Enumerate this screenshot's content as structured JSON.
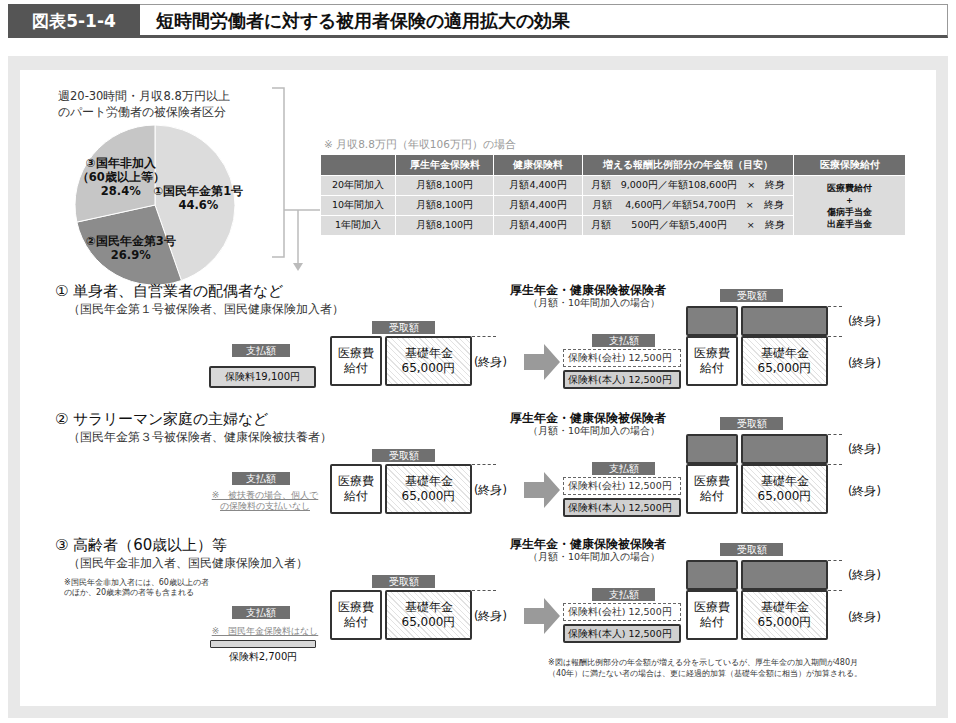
{
  "header": {
    "label": "図表5-1-4",
    "title": "短時間労働者に対する被用者保険の適用拡大の効果"
  },
  "chart_data": {
    "type": "pie",
    "title": "週20-30時間・月収8.8万円以上\nのパート労働者の被保険者区分",
    "categories": [
      "①国民年金第1号",
      "②国民年金第3号",
      "③国年非加入\n（60歳以上等）"
    ],
    "values": [
      44.6,
      26.9,
      28.4
    ],
    "value_labels": [
      "44.6%",
      "26.9%",
      "28.4%"
    ],
    "colors": [
      "#dcdcdc",
      "#8c8c8c",
      "#c6c6c6"
    ],
    "data_labels": true
  },
  "table": {
    "note": "※ 月収8.8万円（年収106万円）の場合",
    "columns": [
      "厚生年金保険料",
      "健康保険料",
      "増える報酬比例部分の年金額（目安）",
      "医療保険給付"
    ],
    "rows": [
      [
        "20年間加入",
        "月額8,100円",
        "月額4,400円",
        "月額　9,000円／年額108,600円　×　終身"
      ],
      [
        "10年間加入",
        "月額8,100円",
        "月額4,400円",
        "月額　 4,600円／年額54,700円　×　終身"
      ],
      [
        "1年間加入",
        "月額8,100円",
        "月額4,400円",
        "月額　　500円／年額5,400円　　×　終身"
      ]
    ],
    "medical_benefits": [
      "医療費給付",
      "＋",
      "傷病手当金",
      "出産手当金"
    ]
  },
  "before": {
    "pay_label": "支払額",
    "receive_label": "受取額",
    "medical": [
      "医療費",
      "給付"
    ],
    "pension": [
      "基礎年金",
      "65,000円"
    ],
    "lifetime": "(終身)"
  },
  "after": {
    "title": "厚生年金・健康保険被保険者",
    "subtitle": "（月額・10年間加入の場合）",
    "pay_label": "支払額",
    "company": "保険料(会社) 12,500円",
    "self": "保険料(本人) 12,500円",
    "receive_label": "受取額",
    "medical": [
      "医療費",
      "給付"
    ],
    "pension": [
      "基礎年金",
      "65,000円"
    ],
    "lifetime": "(終身)"
  },
  "sections": [
    {
      "title": "① 単身者、自営業者の配偶者など",
      "subtitle": "（国民年金第１号被保険者、国民健康保険加入者）",
      "pay_box": "保険料19,100円"
    },
    {
      "title": "② サラリーマン家庭の主婦など",
      "subtitle": "（国民年金第３号被保険者、健康保険被扶養者）",
      "pay_note": [
        "※　被扶養の場合、個人で",
        "の保険料の支払いなし"
      ]
    },
    {
      "title": "③ 高齢者（60歳以上）等",
      "subtitle": "（国民年金非加入者、国民健康保険加入者）",
      "note": [
        "※国民年金非加入者には、60歳以上の者",
        "のほか、20歳未満の者等も含まれる"
      ],
      "pay_note": [
        "※　国民年金保険料はなし"
      ],
      "pay_box": "保険料2,700円"
    }
  ],
  "footnote": [
    "※図は報酬比例部分の年金額が増える分を示しているが、厚生年金の加入期間が480月",
    "（40年）に満たない者の場合は、更に経過的加算（基礎年金額に相当）が加算される。"
  ]
}
